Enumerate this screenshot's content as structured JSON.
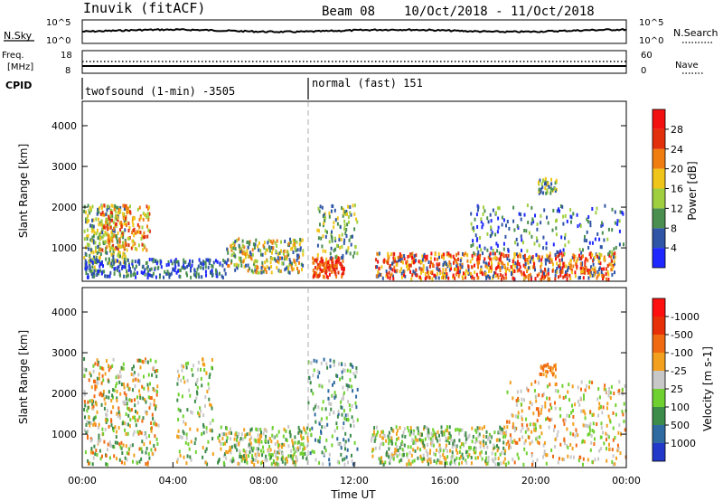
{
  "header": {
    "station": "Inuvik (fitACF)",
    "beam": "Beam 08",
    "dates": "10/Oct/2018 - 11/Oct/2018"
  },
  "panels": {
    "nsky": {
      "left_label": "N.Sky",
      "right_label": "N.Search",
      "tick_top_left": "10^5",
      "tick_bottom_left": "10^0",
      "tick_top_right": "10^5",
      "tick_bottom_right": "10^0"
    },
    "freq": {
      "left_label_1": "Freq.",
      "left_label_2": "[MHz]",
      "right_label": "Nave",
      "tick_top_left": "18",
      "tick_bottom_left": "8",
      "tick_top_right": "60",
      "tick_bottom_right": "0"
    },
    "cpid": {
      "label": "CPID",
      "mode_1": "twofsound (1-min) -3505",
      "mode_2": "normal (fast) 151"
    }
  },
  "chart_data": [
    {
      "type": "heatmap",
      "name": "Power",
      "ylabel": "Slant Range [km]",
      "yticks": [
        "1000",
        "2000",
        "3000",
        "4000"
      ],
      "ylim": [
        180,
        4600
      ],
      "colorbar_label": "Power [dB]",
      "colorbar_ticks": [
        "4",
        "8",
        "12",
        "16",
        "20",
        "24",
        "28"
      ],
      "colorbar_colors": [
        "#1e28ff",
        "#2f55a6",
        "#4a8f4f",
        "#9fcf3f",
        "#f0c51a",
        "#f07d10",
        "#e2300c",
        "#f31010"
      ]
    },
    {
      "type": "heatmap",
      "name": "Velocity",
      "ylabel": "Slant Range [km]",
      "yticks": [
        "1000",
        "2000",
        "3000",
        "4000"
      ],
      "ylim": [
        180,
        4600
      ],
      "xlabel": "Time UT",
      "xticks": [
        "00:00",
        "04:00",
        "08:00",
        "12:00",
        "16:00",
        "20:00",
        "00:00"
      ],
      "colorbar_label": "Velocity [m s-1]",
      "colorbar_ticks": [
        "1000",
        "500",
        "100",
        "25",
        "-25",
        "-100",
        "-500",
        "-1000"
      ],
      "colorbar_colors": [
        "#2238c8",
        "#2f6aa0",
        "#3d8c4a",
        "#6fd12f",
        "#c8c8c8",
        "#f2a01e",
        "#f06a12",
        "#e83008",
        "#ff1010"
      ]
    }
  ]
}
